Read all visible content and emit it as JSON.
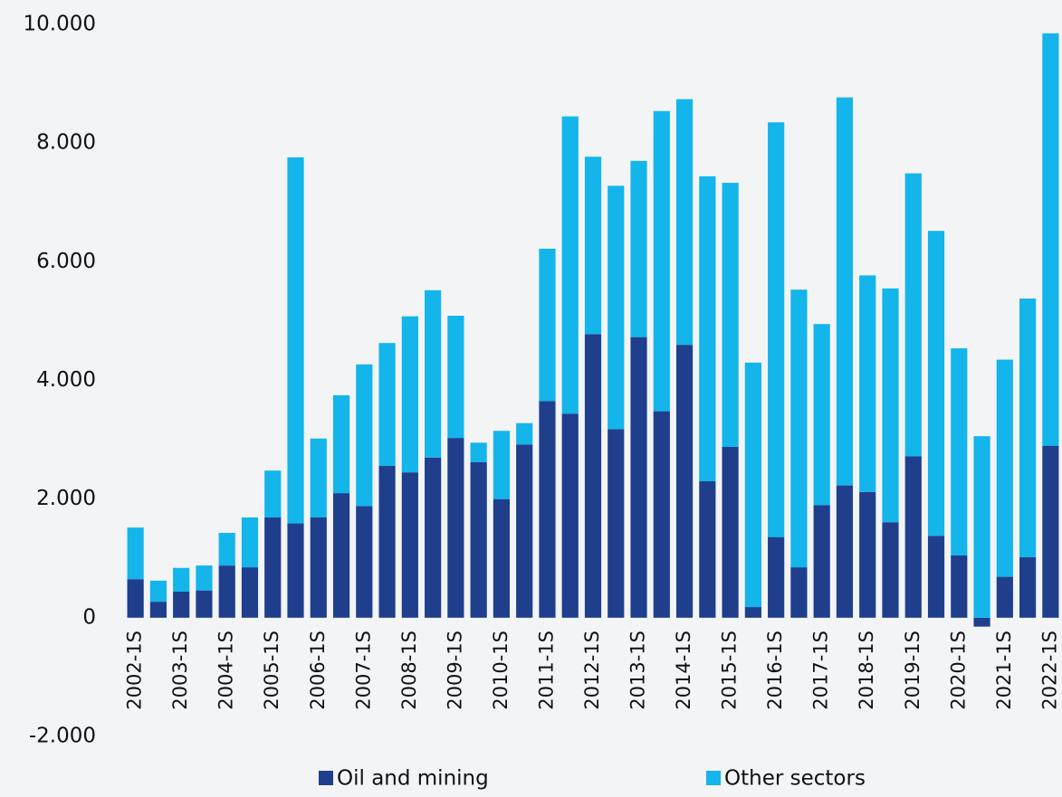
{
  "chart_data": {
    "type": "stacked_bar",
    "categories": [
      "2002-1S",
      null,
      "2003-1S",
      null,
      "2004-1S",
      null,
      "2005-1S",
      null,
      "2006-1S",
      null,
      "2007-1S",
      null,
      "2008-1S",
      null,
      "2009-1S",
      null,
      "2010-1S",
      null,
      "2011-1S",
      null,
      "2012-1S",
      null,
      "2013-1S",
      null,
      "2014-1S",
      null,
      "2015-1S",
      null,
      "2016-1S",
      null,
      "2017-1S",
      null,
      "2018-1S",
      null,
      "2019-1S",
      null,
      "2020-1S",
      null,
      "2021-1S",
      null,
      "2022-1S"
    ],
    "series": [
      {
        "name": "Oil and mining",
        "color": "#1f3f8c",
        "values": [
          650,
          270,
          440,
          460,
          880,
          850,
          1690,
          1590,
          1690,
          2100,
          1880,
          2560,
          2450,
          2700,
          3030,
          2620,
          2000,
          2920,
          3650,
          3440,
          4780,
          3180,
          4730,
          3480,
          4600,
          2300,
          2880,
          180,
          1360,
          850,
          1900,
          2230,
          2120,
          1610,
          2720,
          1380,
          1050,
          -150,
          690,
          1020,
          2900
        ]
      },
      {
        "name": "Other sectors",
        "color": "#13b5ea",
        "values": [
          870,
          355,
          400,
          420,
          550,
          840,
          790,
          6170,
          1330,
          1650,
          2390,
          2070,
          2630,
          2820,
          2060,
          330,
          1150,
          360,
          2570,
          5010,
          2990,
          4100,
          2970,
          5060,
          4140,
          5140,
          4450,
          4120,
          6990,
          4680,
          3050,
          6540,
          3650,
          3940,
          4770,
          5140,
          3490,
          3060,
          3660,
          4360,
          6950
        ]
      }
    ],
    "ylim": [
      -2000,
      10000
    ],
    "yticks": [
      {
        "value": -2000,
        "label": "-2.000"
      },
      0,
      {
        "value": 2000,
        "label": "2.000"
      },
      {
        "value": 4000,
        "label": "4.000"
      },
      {
        "value": 6000,
        "label": "6.000"
      },
      {
        "value": 8000,
        "label": "8.000"
      },
      {
        "value": 10000,
        "label": "10.000"
      }
    ],
    "grid": false,
    "legend": "bottom"
  }
}
